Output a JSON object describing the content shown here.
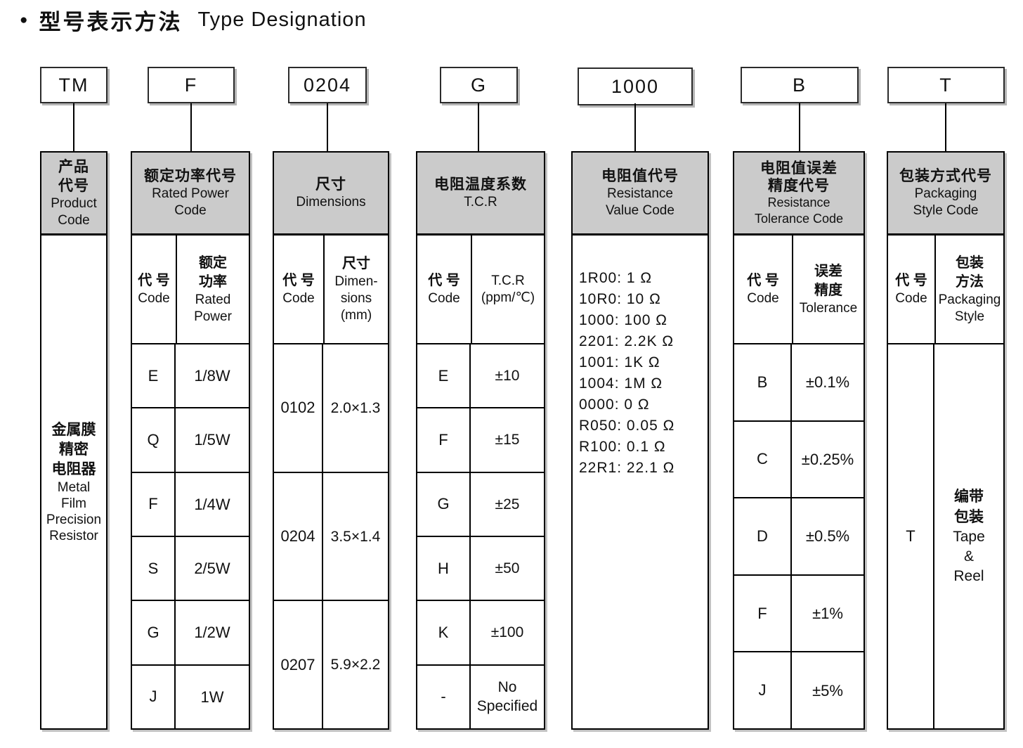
{
  "title": {
    "bullet": "●",
    "zh": "型号表示方法",
    "en": "Type Designation"
  },
  "top_codes": [
    "TM",
    "F",
    "0204",
    "G",
    "1000",
    "B",
    "T"
  ],
  "tables": {
    "product": {
      "header": {
        "zh": [
          "产品",
          "代号"
        ],
        "en": [
          "Product",
          "Code"
        ]
      },
      "body": {
        "zh": [
          "金属膜",
          "精密",
          "电阻器"
        ],
        "en": [
          "Metal",
          "Film",
          "Precision",
          "Resistor"
        ]
      }
    },
    "rated_power": {
      "header": {
        "zh": [
          "额定功率代号"
        ],
        "en": [
          "Rated Power",
          "Code"
        ]
      },
      "code_col": {
        "zh": "代 号",
        "en": "Code"
      },
      "value_col": {
        "zh": [
          "额定",
          "功率"
        ],
        "en": [
          "Rated",
          "Power"
        ]
      },
      "rows": [
        {
          "code": "E",
          "value": "1/8W"
        },
        {
          "code": "Q",
          "value": "1/5W"
        },
        {
          "code": "F",
          "value": "1/4W"
        },
        {
          "code": "S",
          "value": "2/5W"
        },
        {
          "code": "G",
          "value": "1/2W"
        },
        {
          "code": "J",
          "value": "1W"
        }
      ]
    },
    "dimensions": {
      "header": {
        "zh": [
          "尺寸"
        ],
        "en": [
          "Dimensions"
        ]
      },
      "code_col": {
        "zh": "代 号",
        "en": "Code"
      },
      "value_col": {
        "zh": [
          "尺寸"
        ],
        "en": [
          "Dimen-",
          "sions",
          "(mm)"
        ]
      },
      "rows": [
        {
          "code": "0102",
          "value": "2.0×1.3"
        },
        {
          "code": "0204",
          "value": "3.5×1.4"
        },
        {
          "code": "0207",
          "value": "5.9×2.2"
        }
      ]
    },
    "tcr": {
      "header": {
        "zh": [
          "电阻温度系数"
        ],
        "en": [
          "T.C.R"
        ]
      },
      "code_col": {
        "zh": "代 号",
        "en": "Code"
      },
      "value_col": {
        "en": [
          "T.C.R",
          "(ppm/℃)"
        ]
      },
      "rows": [
        {
          "code": "E",
          "value": "±10"
        },
        {
          "code": "F",
          "value": "±15"
        },
        {
          "code": "G",
          "value": "±25"
        },
        {
          "code": "H",
          "value": "±50"
        },
        {
          "code": "K",
          "value": "±100"
        },
        {
          "code": "-",
          "value": "No Specified"
        }
      ]
    },
    "resistance_value": {
      "header": {
        "zh": [
          "电阻值代号"
        ],
        "en": [
          "Resistance",
          "Value Code"
        ]
      },
      "lines": [
        "1R00: 1 Ω",
        "10R0: 10 Ω",
        "1000: 100 Ω",
        "2201: 2.2K Ω",
        "1001: 1K Ω",
        "1004: 1M Ω",
        "0000: 0 Ω",
        "R050: 0.05 Ω",
        "R100: 0.1 Ω",
        "22R1: 22.1 Ω"
      ]
    },
    "tolerance": {
      "header": {
        "zh": [
          "电阻值误差",
          "精度代号"
        ],
        "en": [
          "Resistance",
          "Tolerance Code"
        ]
      },
      "code_col": {
        "zh": "代 号",
        "en": "Code"
      },
      "value_col": {
        "zh": [
          "误差",
          "精度"
        ],
        "en": [
          "Tolerance"
        ]
      },
      "rows": [
        {
          "code": "B",
          "value": "±0.1%"
        },
        {
          "code": "C",
          "value": "±0.25%"
        },
        {
          "code": "D",
          "value": "±0.5%"
        },
        {
          "code": "F",
          "value": "±1%"
        },
        {
          "code": "J",
          "value": "±5%"
        }
      ]
    },
    "packaging": {
      "header": {
        "zh": [
          "包装方式代号"
        ],
        "en": [
          "Packaging",
          "Style Code"
        ]
      },
      "code_col": {
        "zh": "代 号",
        "en": "Code"
      },
      "value_col": {
        "zh": [
          "包装",
          "方法"
        ],
        "en": [
          "Packaging",
          "Style"
        ]
      },
      "rows": [
        {
          "code": "T",
          "value_zh": [
            "编带",
            "包装"
          ],
          "value_en": [
            "Tape",
            "&",
            "Reel"
          ]
        }
      ]
    }
  }
}
